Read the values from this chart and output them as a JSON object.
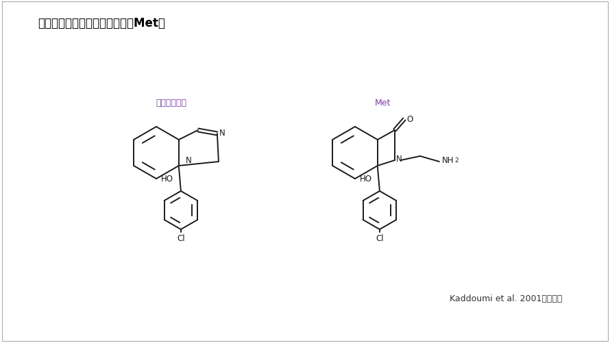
{
  "title": "マジンドールと主要代謝産物（Met）",
  "title_color": "#000000",
  "title_fontsize": 12,
  "label1": "マジンドール",
  "label2": "Met",
  "label_color": "#7B3FA0",
  "label_fontsize": 9,
  "citation": "Kaddoumi et al. 2001より引用",
  "citation_fontsize": 9,
  "bg_color": "#ffffff",
  "line_color": "#1a1a1a",
  "line_width": 1.4
}
